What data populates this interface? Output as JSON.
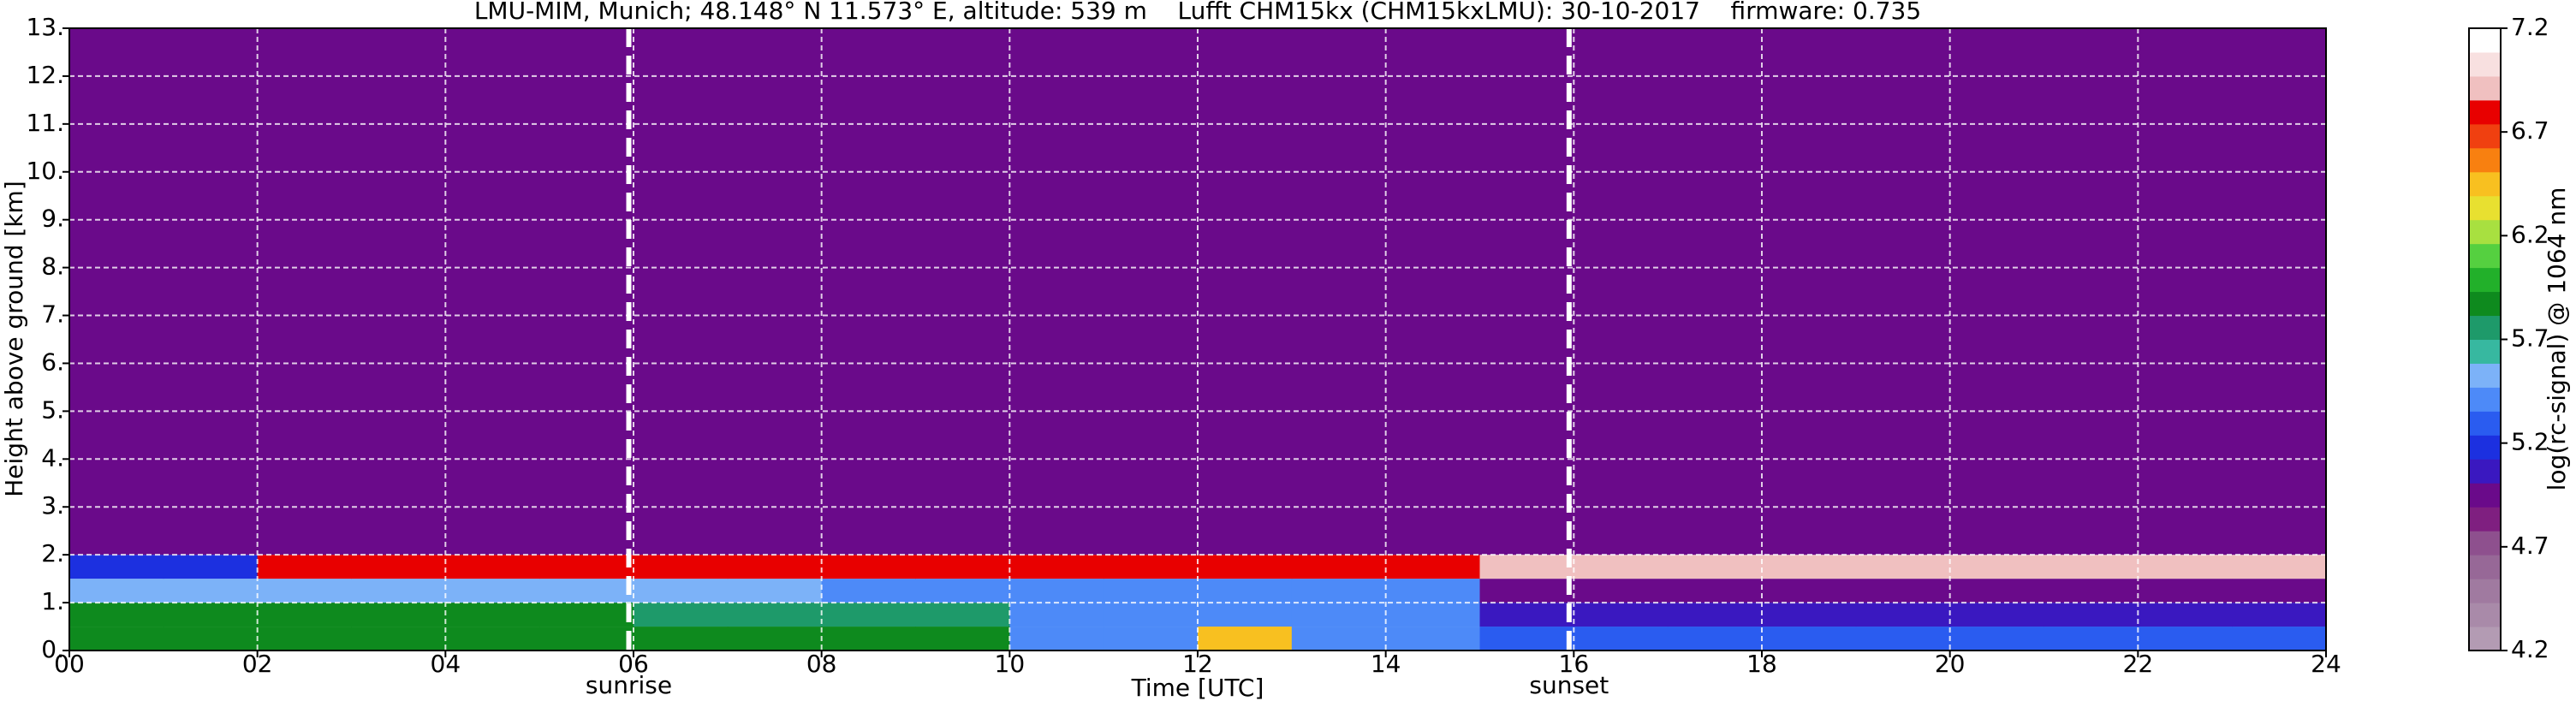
{
  "chart_data": {
    "type": "heatmap",
    "title": "LMU-MIM, Munich; 48.148° N 11.573° E, altitude: 539 m    Lufft CHM15kx (CHM15kxLMU): 30-10-2017    firmware: 0.735",
    "xlabel": "Time [UTC]",
    "ylabel": "Height above ground [km]",
    "colorbar_label": "log(rc-signal) @ 1064 nm",
    "xlim": [
      0,
      24
    ],
    "ylim": [
      0,
      13
    ],
    "xticks": [
      {
        "value": 0,
        "label": "00"
      },
      {
        "value": 2,
        "label": "02"
      },
      {
        "value": 4,
        "label": "04"
      },
      {
        "value": 6,
        "label": "06"
      },
      {
        "value": 8,
        "label": "08"
      },
      {
        "value": 10,
        "label": "10"
      },
      {
        "value": 12,
        "label": "12"
      },
      {
        "value": 14,
        "label": "14"
      },
      {
        "value": 16,
        "label": "16"
      },
      {
        "value": 18,
        "label": "18"
      },
      {
        "value": 20,
        "label": "20"
      },
      {
        "value": 22,
        "label": "22"
      },
      {
        "value": 24,
        "label": "24"
      }
    ],
    "yticks": [
      {
        "value": 0,
        "label": "0."
      },
      {
        "value": 1,
        "label": "1."
      },
      {
        "value": 2,
        "label": "2."
      },
      {
        "value": 3,
        "label": "3."
      },
      {
        "value": 4,
        "label": "4."
      },
      {
        "value": 5,
        "label": "5."
      },
      {
        "value": 6,
        "label": "6."
      },
      {
        "value": 7,
        "label": "7."
      },
      {
        "value": 8,
        "label": "8."
      },
      {
        "value": 9,
        "label": "9."
      },
      {
        "value": 10,
        "label": "10."
      },
      {
        "value": 11,
        "label": "11."
      },
      {
        "value": 12,
        "label": "12."
      },
      {
        "value": 13,
        "label": "13."
      }
    ],
    "grid": true,
    "clim": [
      4.2,
      7.2
    ],
    "cticks": [
      4.2,
      4.7,
      5.2,
      5.7,
      6.2,
      6.7,
      7.2
    ],
    "colormap": [
      "#b39bb3",
      "#a98aa9",
      "#a07aa0",
      "#976897",
      "#8e508e",
      "#7f1f80",
      "#6a0a8a",
      "#3a18c0",
      "#1c30e0",
      "#2a5cf0",
      "#4d8af8",
      "#7cb2f8",
      "#37b8a0",
      "#1e9a6a",
      "#0e8a1e",
      "#22b02a",
      "#55d040",
      "#a8e040",
      "#e8e030",
      "#f8c020",
      "#f88010",
      "#f04010",
      "#e80000",
      "#f0c0c0",
      "#f8e0e0",
      "#ffffff"
    ],
    "x_edges": [
      0,
      1,
      2,
      3,
      4,
      5,
      6,
      7,
      8,
      9,
      10,
      11,
      12,
      13,
      14,
      15,
      16,
      17,
      18,
      19,
      20,
      21,
      22,
      23,
      24
    ],
    "y_edges": [
      0,
      0.5,
      1,
      1.5,
      2,
      13
    ],
    "z": [
      [
        5.9,
        5.9,
        5.9,
        5.9,
        5.9,
        5.9,
        5.9,
        5.9,
        5.9,
        5.9,
        5.4,
        5.4,
        6.4,
        5.4,
        5.4,
        5.3,
        5.3,
        5.3,
        5.3,
        5.3,
        5.3,
        5.3,
        5.3,
        5.3
      ],
      [
        5.9,
        5.9,
        5.9,
        5.9,
        5.9,
        5.9,
        5.8,
        5.8,
        5.8,
        5.8,
        5.4,
        5.4,
        5.4,
        5.4,
        5.4,
        5.1,
        5.1,
        5.1,
        5.1,
        5.1,
        5.1,
        5.1,
        5.1,
        5.1
      ],
      [
        5.5,
        5.5,
        5.5,
        5.5,
        5.5,
        5.5,
        5.5,
        5.5,
        5.4,
        5.4,
        5.4,
        5.4,
        5.4,
        5.4,
        5.4,
        5.0,
        5.0,
        5.0,
        5.0,
        5.0,
        5.0,
        5.0,
        5.0,
        5.0
      ],
      [
        5.2,
        5.2,
        6.8,
        6.8,
        6.8,
        6.8,
        6.8,
        6.8,
        6.8,
        6.8,
        6.8,
        6.8,
        6.8,
        6.8,
        6.8,
        6.9,
        6.9,
        6.9,
        6.9,
        6.9,
        6.9,
        6.9,
        6.9,
        6.9
      ],
      [
        4.9,
        4.9,
        4.9,
        4.9,
        4.9,
        4.9,
        4.9,
        4.9,
        4.9,
        4.9,
        4.9,
        4.9,
        4.9,
        4.9,
        4.9,
        4.9,
        4.9,
        4.9,
        4.9,
        4.9,
        4.9,
        4.9,
        4.9,
        4.9
      ]
    ],
    "annotations": [
      {
        "text": "sunrise",
        "x": 5.95
      },
      {
        "text": "sunset",
        "x": 15.95
      }
    ]
  }
}
